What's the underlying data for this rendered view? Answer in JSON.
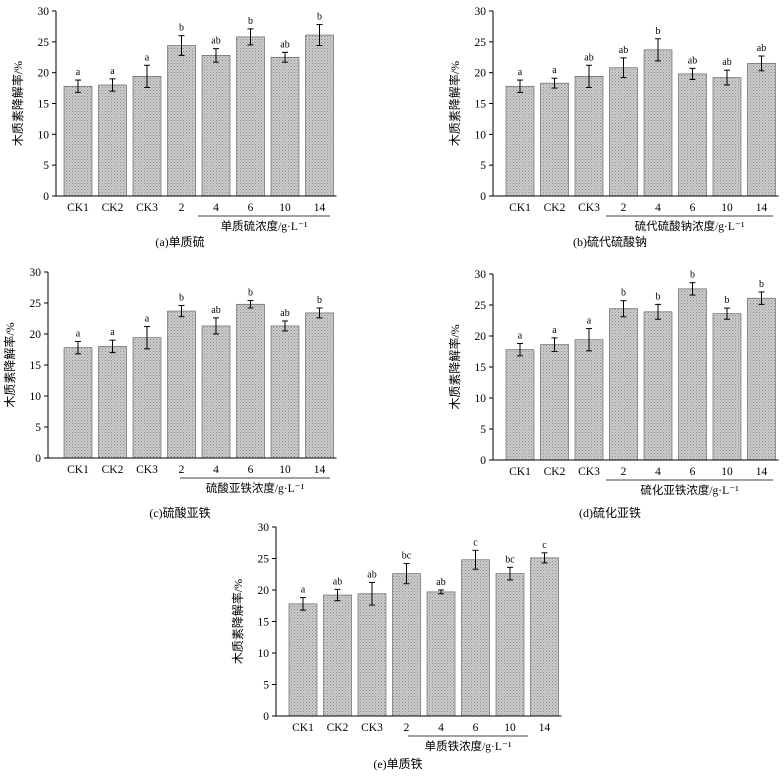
{
  "chart_data": [
    {
      "id": "a",
      "type": "bar",
      "categories": [
        "CK1",
        "CK2",
        "CK3",
        "2",
        "4",
        "6",
        "10",
        "14"
      ],
      "values": [
        17.8,
        18.0,
        19.4,
        24.4,
        22.8,
        25.8,
        22.5,
        26.1
      ],
      "errors": [
        1.0,
        1.0,
        1.8,
        1.6,
        1.1,
        1.3,
        0.8,
        1.7
      ],
      "significance": [
        "a",
        "a",
        "a",
        "b",
        "ab",
        "b",
        "ab",
        "b"
      ],
      "xlabel": "单质硫浓度/g·L⁻¹",
      "ylabel": "木质素降解率/%",
      "caption": "(a)单质硫",
      "ylim": [
        0,
        30
      ],
      "yticks": [
        0,
        5,
        10,
        15,
        20,
        25,
        30
      ],
      "bar_color": "#c4c4c4",
      "grid": false
    },
    {
      "id": "b",
      "type": "bar",
      "categories": [
        "CK1",
        "CK2",
        "CK3",
        "2",
        "4",
        "6",
        "10",
        "14"
      ],
      "values": [
        17.8,
        18.3,
        19.4,
        20.8,
        23.7,
        19.8,
        19.2,
        21.5
      ],
      "errors": [
        1.0,
        0.8,
        1.8,
        1.6,
        1.8,
        0.9,
        1.2,
        1.2
      ],
      "significance": [
        "a",
        "a",
        "ab",
        "ab",
        "b",
        "ab",
        "ab",
        "ab"
      ],
      "xlabel": "硫代硫酸钠浓度/g·L⁻¹",
      "ylabel": "木质素降解率/%",
      "caption": "(b)硫代硫酸钠",
      "ylim": [
        0,
        30
      ],
      "yticks": [
        0,
        5,
        10,
        15,
        20,
        25,
        30
      ],
      "bar_color": "#c4c4c4",
      "grid": false
    },
    {
      "id": "c",
      "type": "bar",
      "categories": [
        "CK1",
        "CK2",
        "CK3",
        "2",
        "4",
        "6",
        "10",
        "14"
      ],
      "values": [
        17.8,
        18.0,
        19.4,
        23.7,
        21.3,
        24.8,
        21.3,
        23.4
      ],
      "errors": [
        1.0,
        1.0,
        1.8,
        0.9,
        1.3,
        0.6,
        0.8,
        0.8
      ],
      "significance": [
        "a",
        "a",
        "a",
        "b",
        "ab",
        "b",
        "ab",
        "b"
      ],
      "xlabel": "硫酸亚铁浓度/g·L⁻¹",
      "ylabel": "木质素降解率/%",
      "caption": "(c)硫酸亚铁",
      "ylim": [
        0,
        30
      ],
      "yticks": [
        0,
        5,
        10,
        15,
        20,
        25,
        30
      ],
      "bar_color": "#c4c4c4",
      "grid": false
    },
    {
      "id": "d",
      "type": "bar",
      "categories": [
        "CK1",
        "CK2",
        "CK3",
        "2",
        "4",
        "6",
        "10",
        "14"
      ],
      "values": [
        17.8,
        18.6,
        19.4,
        24.4,
        23.9,
        27.6,
        23.6,
        26.1
      ],
      "errors": [
        1.0,
        1.1,
        1.8,
        1.3,
        1.2,
        1.0,
        0.9,
        1.0
      ],
      "significance": [
        "a",
        "a",
        "a",
        "b",
        "b",
        "b",
        "b",
        "b"
      ],
      "xlabel": "硫化亚铁浓度/g·L⁻¹",
      "ylabel": "木质素降解率/%",
      "caption": "(d)硫化亚铁",
      "ylim": [
        0,
        30
      ],
      "yticks": [
        0,
        5,
        10,
        15,
        20,
        25,
        30
      ],
      "bar_color": "#c4c4c4",
      "grid": false
    },
    {
      "id": "e",
      "type": "bar",
      "categories": [
        "CK1",
        "CK2",
        "CK3",
        "2",
        "4",
        "6",
        "10",
        "14"
      ],
      "values": [
        17.8,
        19.2,
        19.4,
        22.6,
        19.7,
        24.8,
        22.6,
        25.1
      ],
      "errors": [
        1.0,
        0.9,
        1.8,
        1.6,
        0.3,
        1.5,
        1.0,
        0.8
      ],
      "significance": [
        "a",
        "ab",
        "ab",
        "bc",
        "ab",
        "c",
        "bc",
        "c"
      ],
      "xlabel": "单质铁浓度/g·L⁻¹",
      "ylabel": "木质素降解率/%",
      "caption": "(e)单质铁",
      "ylim": [
        0,
        30
      ],
      "yticks": [
        0,
        5,
        10,
        15,
        20,
        25,
        30
      ],
      "bar_color": "#c4c4c4",
      "grid": false
    }
  ]
}
